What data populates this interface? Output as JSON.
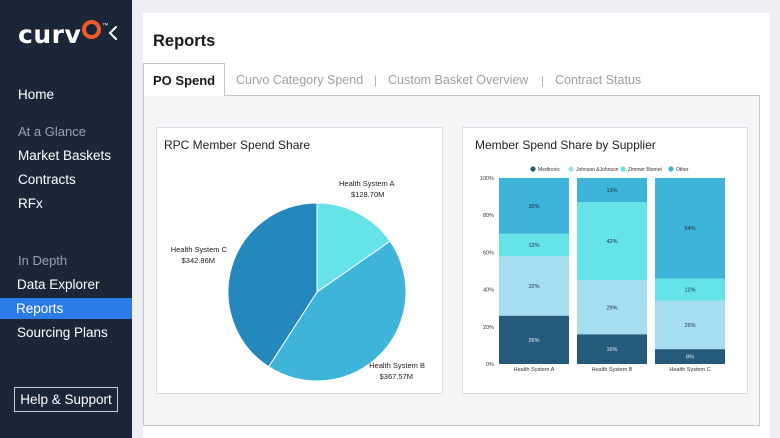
{
  "brand": {
    "name": "curv",
    "o": "o",
    "tm": "™"
  },
  "sidebar": {
    "home": "Home",
    "section_glance": "At a Glance",
    "market_baskets": "Market Baskets",
    "contracts": "Contracts",
    "rfx": "RFx",
    "section_depth": "In Depth",
    "data_explorer": "Data Explorer",
    "reports": "Reports",
    "sourcing_plans": "Sourcing Plans",
    "help": "Help & Support"
  },
  "page": {
    "title": "Reports"
  },
  "tabs": [
    {
      "label": "PO Spend"
    },
    {
      "label": "Curvo Category Spend"
    },
    {
      "label": "Custom Basket Overview"
    },
    {
      "label": "Contract Status"
    }
  ],
  "tab_separator": "|",
  "colors": {
    "sidebar_bg": "#1b2639",
    "active_nav": "#2b7ce9",
    "logo_accent": "#f05a28"
  },
  "chart_data": [
    {
      "type": "pie",
      "title": "RPC Member Spend Share",
      "slices": [
        {
          "name": "Health System A",
          "label": "$128.70M",
          "value": 128.7,
          "color": "#66e2e9"
        },
        {
          "name": "Health System B",
          "label": "$367.57M",
          "value": 367.57,
          "color": "#3eb4d8"
        },
        {
          "name": "Health System C",
          "label": "$342.86M",
          "value": 342.86,
          "color": "#2588bd"
        }
      ]
    },
    {
      "type": "bar",
      "stacked": true,
      "title": "Member Spend Share by Supplier",
      "categories": [
        "Health System A",
        "Health System B",
        "Health System C"
      ],
      "ylim": [
        0,
        100
      ],
      "yticks": [
        "0%",
        "20%",
        "40%",
        "60%",
        "80%",
        "100%"
      ],
      "legend_position": "top",
      "series": [
        {
          "name": "Medtronic",
          "color": "#245a7a",
          "values": [
            26,
            16,
            8
          ],
          "labels": [
            "26%",
            "16%",
            "8%"
          ]
        },
        {
          "name": "Johnson &Johnson",
          "color": "#a5def0",
          "values": [
            32,
            29,
            26
          ],
          "labels": [
            "32%",
            "29%",
            "26%"
          ]
        },
        {
          "name": "Zimmer Biomet",
          "color": "#66e2e9",
          "values": [
            12,
            42,
            12
          ],
          "labels": [
            "12%",
            "42%",
            "12%"
          ]
        },
        {
          "name": "Other",
          "color": "#3eb4d8",
          "values": [
            30,
            13,
            54
          ],
          "labels": [
            "30%",
            "13%",
            "54%"
          ]
        }
      ]
    }
  ]
}
